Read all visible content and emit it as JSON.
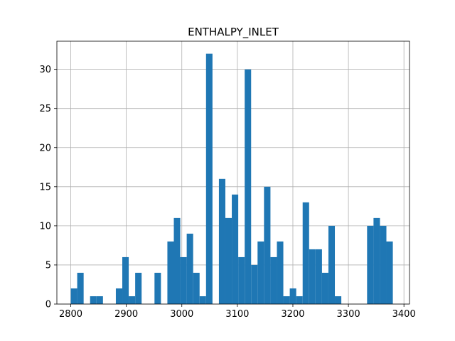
{
  "chart_data": {
    "type": "bar",
    "title": "ENTHALPY_INLET",
    "xlabel": "",
    "ylabel": "",
    "xlim": [
      2775,
      3410
    ],
    "ylim": [
      0,
      33.6
    ],
    "grid": true,
    "bar_color": "#1f77b4",
    "bin_start": 2800,
    "bin_width": 11.6,
    "counts": [
      2,
      4,
      0,
      1,
      1,
      0,
      0,
      2,
      6,
      1,
      4,
      0,
      0,
      4,
      0,
      8,
      11,
      6,
      9,
      4,
      1,
      32,
      0,
      16,
      11,
      14,
      6,
      30,
      5,
      8,
      15,
      6,
      8,
      1,
      2,
      1,
      13,
      7,
      7,
      4,
      10,
      1,
      0,
      0,
      0,
      0,
      10,
      11,
      10,
      8
    ],
    "x_ticks": [
      2800,
      2900,
      3000,
      3100,
      3200,
      3300,
      3400
    ],
    "y_ticks": [
      0,
      5,
      10,
      15,
      20,
      25,
      30
    ]
  }
}
